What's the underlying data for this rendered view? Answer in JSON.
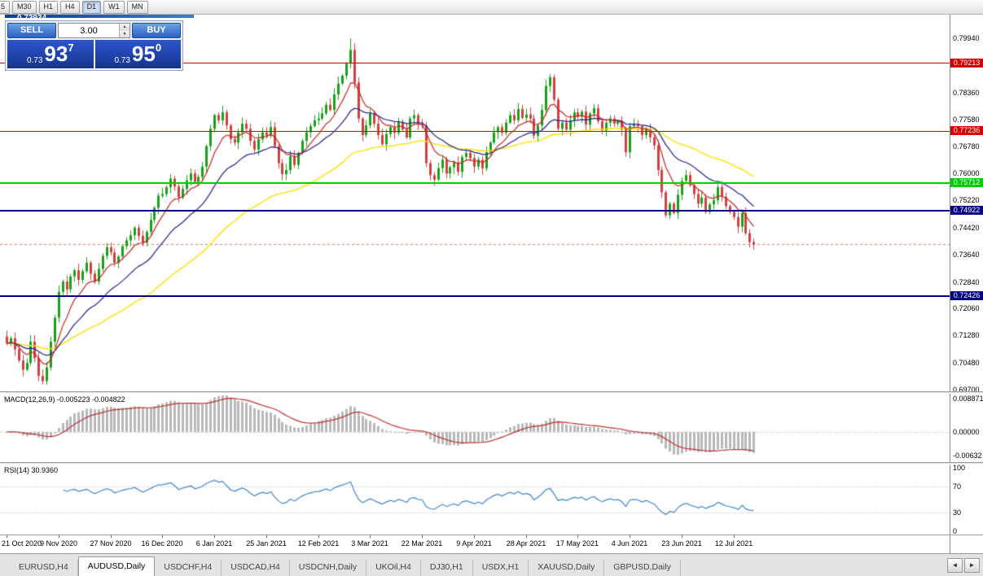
{
  "toolbar": {
    "timeframes": [
      {
        "label": "5",
        "active": false
      },
      {
        "label": "M30",
        "active": false
      },
      {
        "label": "H1",
        "active": false
      },
      {
        "label": "H4",
        "active": false
      },
      {
        "label": "D1",
        "active": true
      },
      {
        "label": "W1",
        "active": false
      },
      {
        "label": "MN",
        "active": false
      }
    ]
  },
  "chart_window": {
    "icon": "▲",
    "title": "AUDUSD,Daily 0.73909 0.73934 0.73909 0.73934"
  },
  "trade_panel": {
    "sell_label": "SELL",
    "buy_label": "BUY",
    "volume": "3.00",
    "spin_up": "▲",
    "spin_down": "▼",
    "sell_price": {
      "base": "0.73",
      "big": "93",
      "sup": "7"
    },
    "buy_price": {
      "base": "0.73",
      "big": "95",
      "sup": "0"
    }
  },
  "price_axis_labels": [
    "0.79940",
    "0.79160",
    "0.78360",
    "0.77580",
    "0.76780",
    "0.76000",
    "0.75220",
    "0.74420",
    "0.73640",
    "0.72840",
    "0.72060",
    "0.71280",
    "0.70480",
    "0.69700"
  ],
  "hlines": [
    {
      "name": "resistance-1",
      "price": 0.79213,
      "label": "0.79213",
      "color": "#d40000",
      "height": 1
    },
    {
      "name": "resistance-2",
      "price": 0.77236,
      "label": "0.77236",
      "color": "#d40000",
      "height": 1
    },
    {
      "name": "support-green",
      "price": 0.75712,
      "label": "0.75712",
      "color": "#00ce00",
      "height": 2
    },
    {
      "name": "support-blue-1",
      "price": 0.74922,
      "label": "0.74922",
      "color": "#000080",
      "height": 2
    },
    {
      "name": "support-blue-2",
      "price": 0.72426,
      "label": "0.72426",
      "color": "#000080",
      "height": 2
    }
  ],
  "bid_line": {
    "price": 0.73934,
    "color": "#ee7070"
  },
  "macd_panel": {
    "label": "MACD(12,26,9) -0.005223 -0.004822",
    "axis": [
      {
        "value": 0.008871,
        "label": "0.008871"
      },
      {
        "value": 0,
        "label": "0.00000"
      },
      {
        "value": -0.00632,
        "label": "-0.00632"
      }
    ],
    "range": {
      "max": 0.008871,
      "min": -0.00632
    },
    "fast": 12,
    "slow": 26,
    "signal": 9,
    "histogram_color": "#b8b8b8",
    "signal_color": "#c03030"
  },
  "rsi_panel": {
    "label": "RSI(14) 30.9360",
    "axis": [
      {
        "value": 100,
        "label": "100"
      },
      {
        "value": 70,
        "label": "70"
      },
      {
        "value": 30,
        "label": "30"
      },
      {
        "value": 0,
        "label": "0"
      }
    ],
    "levels": [
      70,
      30
    ],
    "period": 14,
    "line_color": "#3d85c8"
  },
  "time_axis": [
    "21 Oct 2020",
    "9 Nov 2020",
    "27 Nov 2020",
    "16 Dec 2020",
    "6 Jan 2021",
    "25 Jan 2021",
    "12 Feb 2021",
    "3 Mar 2021",
    "22 Mar 2021",
    "9 Apr 2021",
    "28 Apr 2021",
    "17 May 2021",
    "4 Jun 2021",
    "23 Jun 2021",
    "12 Jul 2021"
  ],
  "time_axis_bars_per_label": 13,
  "tabs": [
    {
      "label": "EURUSD,H4",
      "active": false
    },
    {
      "label": "AUDUSD,Daily",
      "active": true
    },
    {
      "label": "USDCHF,H4",
      "active": false
    },
    {
      "label": "USDCAD,H4",
      "active": false
    },
    {
      "label": "USDCNH,Daily",
      "active": false
    },
    {
      "label": "UKOil,H4",
      "active": false
    },
    {
      "label": "DJ30,H1",
      "active": false
    },
    {
      "label": "USDX,H1",
      "active": false
    },
    {
      "label": "XAUUSD,Daily",
      "active": false
    },
    {
      "label": "GBPUSD,Daily",
      "active": false
    }
  ],
  "tab_scroll": {
    "left": "◄",
    "right": "►"
  },
  "chart_data": {
    "type": "candlestick",
    "symbol": "AUDUSD",
    "timeframe": "Daily",
    "ylim": [
      0.697,
      0.7994
    ],
    "first_open": 0.7125,
    "closes": [
      0.7105,
      0.712,
      0.7088,
      0.7055,
      0.7028,
      0.7048,
      0.711,
      0.7062,
      0.701,
      0.6995,
      0.7035,
      0.711,
      0.718,
      0.7255,
      0.7285,
      0.7262,
      0.73,
      0.7318,
      0.729,
      0.7315,
      0.734,
      0.7308,
      0.7285,
      0.7322,
      0.736,
      0.7385,
      0.737,
      0.734,
      0.7358,
      0.7388,
      0.7405,
      0.742,
      0.7442,
      0.7418,
      0.7398,
      0.743,
      0.7465,
      0.75,
      0.7535,
      0.754,
      0.756,
      0.7585,
      0.7562,
      0.753,
      0.7555,
      0.758,
      0.76,
      0.7575,
      0.759,
      0.762,
      0.768,
      0.773,
      0.777,
      0.7755,
      0.7778,
      0.774,
      0.77,
      0.769,
      0.772,
      0.7745,
      0.773,
      0.7695,
      0.767,
      0.77,
      0.772,
      0.771,
      0.7735,
      0.768,
      0.763,
      0.7598,
      0.761,
      0.765,
      0.7625,
      0.766,
      0.7695,
      0.772,
      0.7738,
      0.7755,
      0.776,
      0.7775,
      0.78,
      0.7785,
      0.783,
      0.7862,
      0.7885,
      0.792,
      0.796,
      0.7865,
      0.776,
      0.7712,
      0.774,
      0.7775,
      0.7745,
      0.7712,
      0.7685,
      0.7715,
      0.7735,
      0.7718,
      0.775,
      0.7728,
      0.7705,
      0.776,
      0.777,
      0.7745,
      0.774,
      0.763,
      0.7595,
      0.7582,
      0.7615,
      0.764,
      0.76,
      0.7618,
      0.7632,
      0.7605,
      0.7648,
      0.766,
      0.7645,
      0.762,
      0.764,
      0.7615,
      0.7662,
      0.769,
      0.772,
      0.7735,
      0.7718,
      0.7748,
      0.777,
      0.7755,
      0.7788,
      0.7762,
      0.7772,
      0.776,
      0.771,
      0.774,
      0.7785,
      0.7855,
      0.788,
      0.7815,
      0.773,
      0.7748,
      0.7728,
      0.7755,
      0.7778,
      0.7765,
      0.778,
      0.7742,
      0.7775,
      0.779,
      0.7752,
      0.7725,
      0.7748,
      0.776,
      0.7745,
      0.7752,
      0.7728,
      0.7662,
      0.7738,
      0.7745,
      0.7738,
      0.7712,
      0.773,
      0.7705,
      0.7682,
      0.761,
      0.7545,
      0.7478,
      0.7512,
      0.7485,
      0.7538,
      0.7578,
      0.7595,
      0.7566,
      0.754,
      0.7512,
      0.753,
      0.7488,
      0.751,
      0.7522,
      0.756,
      0.7532,
      0.7505,
      0.7488,
      0.7473,
      0.7445,
      0.7485,
      0.7426,
      0.74,
      0.73934
    ],
    "wick_overrides": [
      {
        "i": 86,
        "high": 0.7994
      },
      {
        "i": 9,
        "low": 0.6985
      }
    ],
    "ma_periods": {
      "fast": 8,
      "mid": 21,
      "slow": 55
    },
    "ma_colors": {
      "fast": "#cc2222",
      "mid": "#202090",
      "slow": "#ffdf00"
    },
    "candle_colors": {
      "up": "#18a018",
      "down": "#d04040"
    },
    "bar_spacing": 4.905,
    "left_offset": 8
  }
}
